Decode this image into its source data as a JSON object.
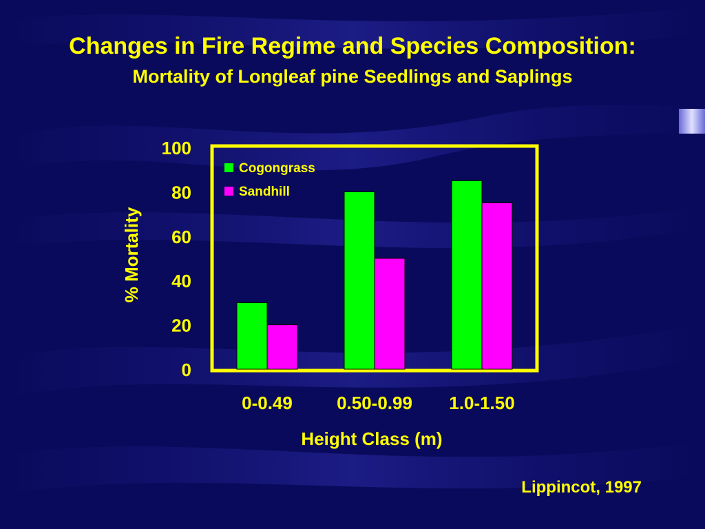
{
  "slide": {
    "title": "Changes in Fire Regime and Species Composition:",
    "subtitle": "Mortality of Longleaf pine Seedlings and Saplings",
    "citation": "Lippincot, 1997"
  },
  "colors": {
    "background": "#0a0a5c",
    "text": "#ffff00",
    "plot_frame": "#ffff00",
    "cogongrass": "#00ff00",
    "sandhill": "#ff00ff"
  },
  "chart_data": {
    "type": "bar",
    "xlabel": "Height Class (m)",
    "ylabel": "% Mortality",
    "categories": [
      "0-0.49",
      "0.50-0.99",
      "1.0-1.50"
    ],
    "series": [
      {
        "name": "Cogongrass",
        "color": "#00ff00",
        "values": [
          30,
          80,
          85
        ]
      },
      {
        "name": "Sandhill",
        "color": "#ff00ff",
        "values": [
          20,
          50,
          75
        ]
      }
    ],
    "ylim": [
      0,
      100
    ],
    "yticks": [
      0,
      20,
      40,
      60,
      80,
      100
    ],
    "grid": false,
    "legend_position": "top-left"
  }
}
